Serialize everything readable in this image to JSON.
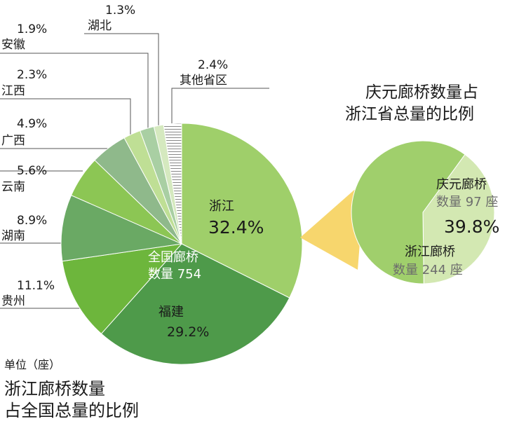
{
  "chart_data": [
    {
      "type": "pie",
      "title": "浙江廊桥数量占全国总量的比例",
      "unit": "单位（座）",
      "center_label": [
        "全国廊桥",
        "数量 754"
      ],
      "slices": [
        {
          "name": "浙江",
          "value": 32.4,
          "label": "32.4%",
          "color": "#9fcf6a"
        },
        {
          "name": "福建",
          "value": 29.2,
          "label": "29.2%",
          "color": "#4e9a4a"
        },
        {
          "name": "贵州",
          "value": 11.1,
          "label": "11.1%",
          "color": "#6db63c"
        },
        {
          "name": "湖南",
          "value": 8.9,
          "label": "8.9%",
          "color": "#6aa964"
        },
        {
          "name": "云南",
          "value": 5.6,
          "label": "5.6%",
          "color": "#8cc654"
        },
        {
          "name": "广西",
          "value": 4.9,
          "label": "4.9%",
          "color": "#8fb98b"
        },
        {
          "name": "江西",
          "value": 2.3,
          "label": "2.3%",
          "color": "#bfdf95"
        },
        {
          "name": "安徽",
          "value": 1.9,
          "label": "1.9%",
          "color": "#a9cfa3"
        },
        {
          "name": "湖北",
          "value": 1.3,
          "label": "1.3%",
          "color": "#d5e9bf"
        },
        {
          "name": "其他省区",
          "value": 2.4,
          "label": "2.4%",
          "color": "#ffffff"
        }
      ]
    },
    {
      "type": "pie",
      "title": "庆元廊桥数量占浙江省总量的比例",
      "slices": [
        {
          "name": "庆元廊桥",
          "value": 39.8,
          "label": "39.8%",
          "count_text": "数量 97 座",
          "color": "#d3e8b2"
        },
        {
          "name": "浙江廊桥",
          "value": 60.2,
          "count_text": "数量 244 座",
          "color": "#a0cf6c"
        }
      ]
    }
  ],
  "labels": {
    "main_title_line1": "浙江廊桥数量",
    "main_title_line2": "占全国总量的比例",
    "unit": "单位（座）",
    "right_title_line1": "庆元廊桥数量占",
    "right_title_line2": "浙江省总量的比例",
    "center_line1": "全国廊桥",
    "center_line2": "数量 754",
    "zj_name": "浙江",
    "zj_pct": "32.4%",
    "fj_name": "福建",
    "fj_pct": "29.2%",
    "gz_name": "贵州",
    "gz_pct": "11.1%",
    "hn_name": "湖南",
    "hn_pct": "8.9%",
    "yn_name": "云南",
    "yn_pct": "5.6%",
    "gx_name": "广西",
    "gx_pct": "4.9%",
    "jx_name": "江西",
    "jx_pct": "2.3%",
    "ah_name": "安徽",
    "ah_pct": "1.9%",
    "hb_name": "湖北",
    "hb_pct": "1.3%",
    "qt_name": "其他省区",
    "qt_pct": "2.4%",
    "qy_name": "庆元廊桥",
    "qy_count": "数量 97 座",
    "qy_pct": "39.8%",
    "zjl_name": "浙江廊桥",
    "zjl_count": "数量 244 座"
  }
}
